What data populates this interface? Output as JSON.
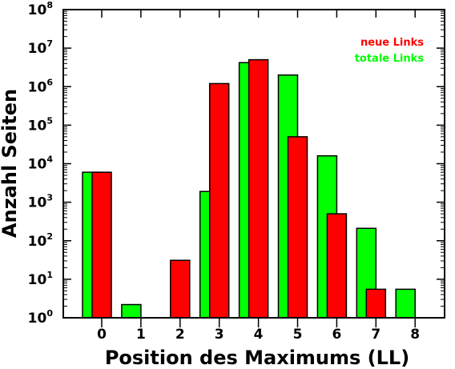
{
  "chart_data": {
    "type": "bar",
    "xlabel": "Position des Maximums (LL)",
    "ylabel": "Anzahl Seiten",
    "yscale": "log",
    "ylim": [
      1,
      100000000
    ],
    "y_tick_exponents": [
      "0",
      "1",
      "2",
      "3",
      "4",
      "5",
      "6",
      "7",
      "8"
    ],
    "y_tick_base": "10",
    "categories": [
      "0",
      "1",
      "2",
      "3",
      "4",
      "5",
      "6",
      "7",
      "8"
    ],
    "legend_position": "top-right",
    "grid": false,
    "series": [
      {
        "name": "neue Links",
        "color": "#ff0000",
        "values": [
          6000,
          null,
          31,
          1200000,
          5000000,
          50000,
          500,
          5.5,
          null
        ]
      },
      {
        "name": "totale Links",
        "color": "#00ff00",
        "values": [
          6000,
          2.2,
          null,
          1900,
          4200000,
          2000000,
          16000,
          210,
          5.5
        ]
      }
    ]
  }
}
